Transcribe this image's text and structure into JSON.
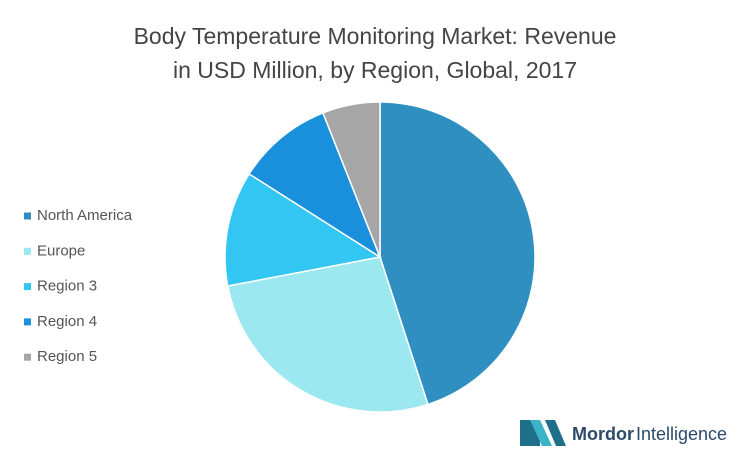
{
  "chart_data": {
    "type": "pie",
    "title": [
      "Body Temperature Monitoring Market: Revenue",
      "in USD Million, by Region, Global, 2017"
    ],
    "categories": [
      "North America",
      "Europe",
      "Region 3",
      "Region 4",
      "Region 5"
    ],
    "values": [
      45,
      27,
      12,
      10,
      6
    ],
    "colors": [
      "#2e8fc0",
      "#9be8f0",
      "#33c6f2",
      "#1a8fdc",
      "#a6a6a6"
    ],
    "legend": "left"
  },
  "brand": {
    "name": "Mordor",
    "suffix": "Intelligence"
  }
}
